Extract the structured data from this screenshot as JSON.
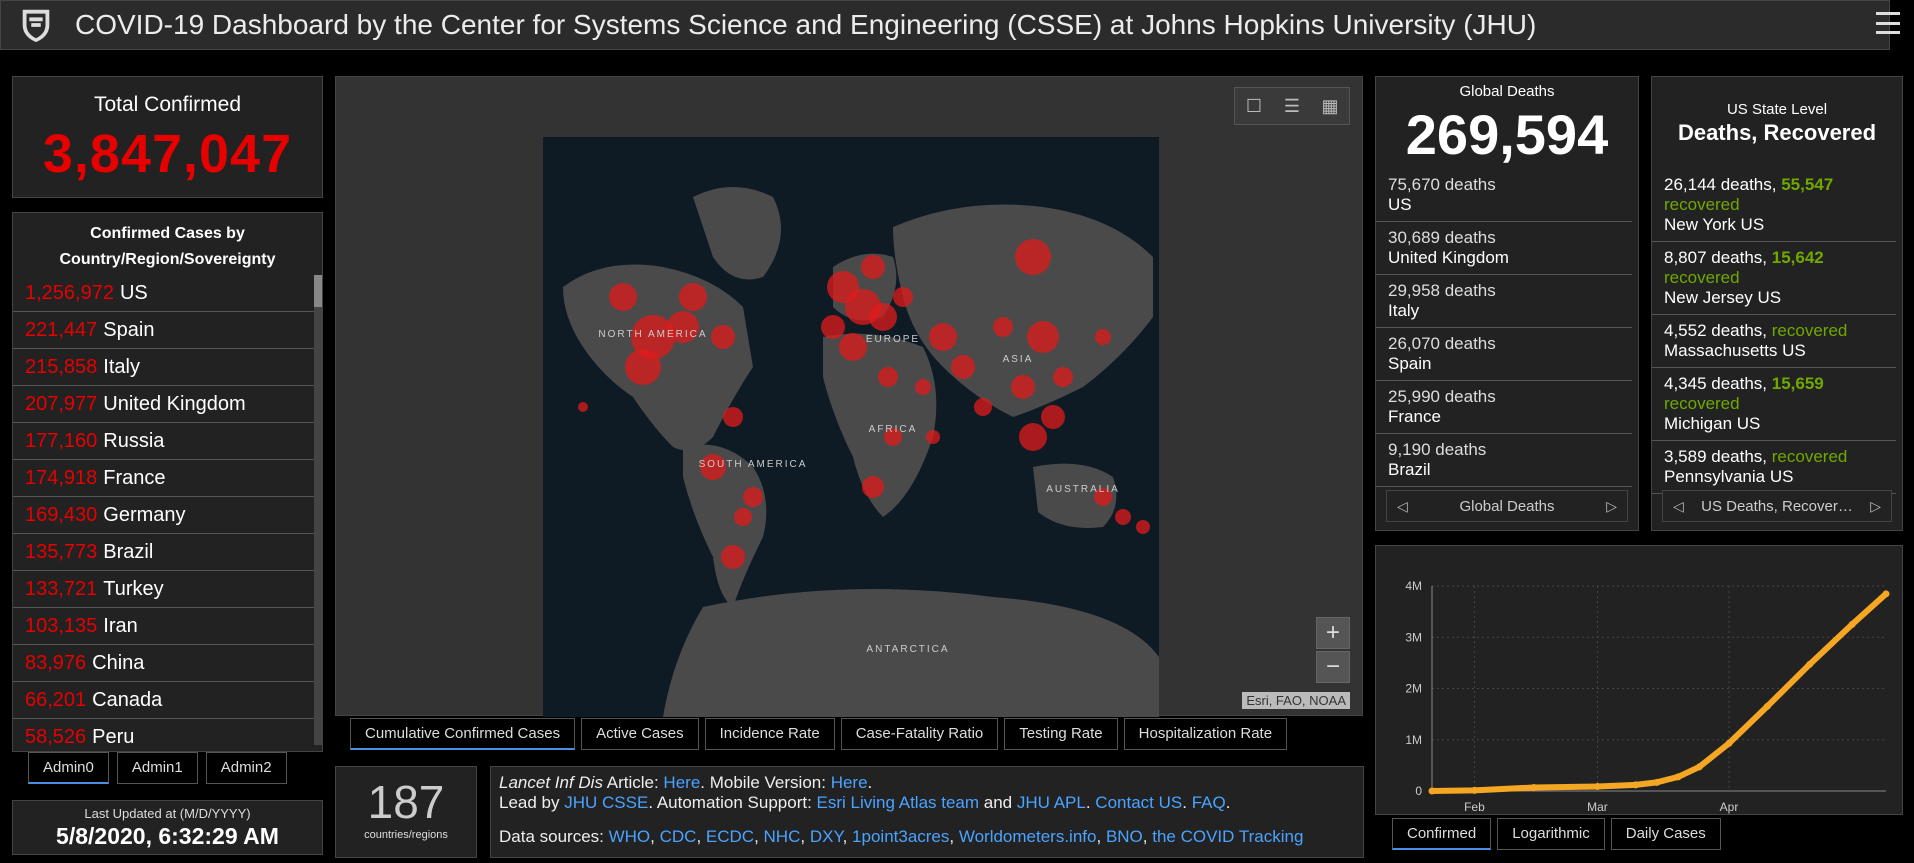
{
  "header": {
    "title": "COVID-19 Dashboard by the Center for Systems Science and Engineering (CSSE) at Johns Hopkins University (JHU)"
  },
  "total": {
    "label": "Total Confirmed",
    "value": "3,847,047"
  },
  "countries": {
    "title_line1": "Confirmed Cases by",
    "title_line2": "Country/Region/Sovereignty",
    "rows": [
      {
        "num": "1,256,972",
        "name": "US"
      },
      {
        "num": "221,447",
        "name": "Spain"
      },
      {
        "num": "215,858",
        "name": "Italy"
      },
      {
        "num": "207,977",
        "name": "United Kingdom"
      },
      {
        "num": "177,160",
        "name": "Russia"
      },
      {
        "num": "174,918",
        "name": "France"
      },
      {
        "num": "169,430",
        "name": "Germany"
      },
      {
        "num": "135,773",
        "name": "Brazil"
      },
      {
        "num": "133,721",
        "name": "Turkey"
      },
      {
        "num": "103,135",
        "name": "Iran"
      },
      {
        "num": "83,976",
        "name": "China"
      },
      {
        "num": "66,201",
        "name": "Canada"
      },
      {
        "num": "58,526",
        "name": "Peru"
      }
    ]
  },
  "admin_tabs": [
    "Admin0",
    "Admin1",
    "Admin2"
  ],
  "updated": {
    "label": "Last Updated at (M/D/YYYY)",
    "value": "5/8/2020, 6:32:29 AM"
  },
  "map": {
    "regions": {
      "north_america": "NORTH\nAMERICA",
      "europe": "EUROPE",
      "asia": "ASIA",
      "africa": "AFRICA",
      "south_america": "SOUTH\nAMERICA",
      "australia": "AUSTRALIA",
      "antarctica": "ANTARCTICA"
    },
    "attribution": "Esri, FAO, NOAA",
    "tabs": [
      "Cumulative Confirmed Cases",
      "Active Cases",
      "Incidence Rate",
      "Case-Fatality Ratio",
      "Testing Rate",
      "Hospitalization Rate"
    ]
  },
  "count": {
    "value": "187",
    "label": "countries/regions"
  },
  "info": {
    "journal": "Lancet Inf Dis",
    "article_prefix": " Article: ",
    "here1": "Here",
    "mobile_prefix": ". Mobile Version: ",
    "here2": "Here",
    "lead_prefix": "Lead by ",
    "jhu_csse": "JHU CSSE",
    "auto_prefix": ". Automation Support: ",
    "esri": "Esri Living Atlas team",
    "and": " and ",
    "jhu_apl": "JHU APL",
    "contact": "Contact US",
    "faq": "FAQ",
    "sources_prefix": "Data sources: ",
    "sources": [
      "WHO",
      "CDC",
      "ECDC",
      "NHC",
      "DXY",
      "1point3acres",
      "Worldometers.info",
      "BNO",
      "the COVID Tracking"
    ]
  },
  "deaths": {
    "label": "Global Deaths",
    "value": "269,594",
    "rows": [
      {
        "n": "75,670 deaths",
        "place": "US"
      },
      {
        "n": "30,689 deaths",
        "place": "United Kingdom"
      },
      {
        "n": "29,958 deaths",
        "place": "Italy"
      },
      {
        "n": "26,070 deaths",
        "place": "Spain"
      },
      {
        "n": "25,990 deaths",
        "place": "France"
      },
      {
        "n": "9,190 deaths",
        "place": "Brazil"
      }
    ],
    "pager_label": "Global Deaths"
  },
  "us": {
    "label": "US State Level",
    "sub": "Deaths, Recovered",
    "rows": [
      {
        "deaths": "26,144 deaths, ",
        "recovered": "55,547",
        "rec_label": "recovered",
        "place": "New York US"
      },
      {
        "deaths": "8,807 deaths, ",
        "recovered": "15,642",
        "rec_label": "recovered",
        "place": "New Jersey US"
      },
      {
        "deaths": "4,552 deaths, ",
        "recovered": "",
        "rec_label": "recovered",
        "place": "Massachusetts US"
      },
      {
        "deaths": "4,345 deaths, ",
        "recovered": "15,659",
        "rec_label": "recovered",
        "place": "Michigan US"
      },
      {
        "deaths": "3,589 deaths, ",
        "recovered": "",
        "rec_label": "recovered",
        "place": "Pennsylvania US"
      }
    ],
    "pager_label": "US Deaths, Recover…"
  },
  "chart_tabs": [
    "Confirmed",
    "Logarithmic",
    "Daily Cases"
  ],
  "chart_data": {
    "type": "line",
    "title": "",
    "xlabel": "",
    "ylabel": "",
    "x_ticks": [
      "Feb",
      "Mar",
      "Apr"
    ],
    "y_ticks": [
      "0",
      "1M",
      "2M",
      "3M",
      "4M"
    ],
    "ylim": [
      0,
      4000000
    ],
    "xlim": [
      "2020-01-22",
      "2020-05-08"
    ],
    "series": [
      {
        "color": "#f5a623",
        "x": [
          "2020-01-22",
          "2020-02-01",
          "2020-02-15",
          "2020-03-01",
          "2020-03-10",
          "2020-03-15",
          "2020-03-20",
          "2020-03-25",
          "2020-04-01",
          "2020-04-10",
          "2020-04-20",
          "2020-04-30",
          "2020-05-08"
        ],
        "values": [
          600,
          12000,
          69000,
          88000,
          119000,
          169000,
          275000,
          470000,
          930000,
          1650000,
          2470000,
          3250000,
          3847047
        ]
      }
    ]
  }
}
